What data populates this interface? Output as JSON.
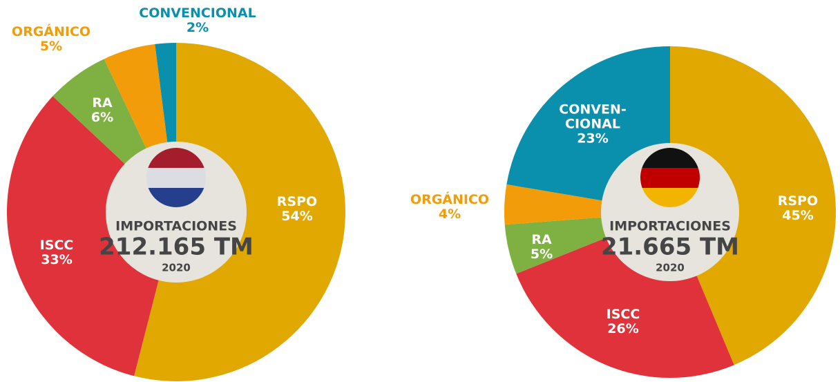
{
  "chart_data": [
    {
      "type": "donut",
      "center_label": "IMPORTACIONES",
      "center_value": "212.165 TM",
      "center_year": "2020",
      "categories": [
        "RSPO",
        "ISCC",
        "RA",
        "ORGÁNICO",
        "CONVENCIONAL"
      ],
      "values": [
        54,
        33,
        6,
        5,
        2
      ],
      "value_labels": [
        "54%",
        "33%",
        "6%",
        "5%",
        "2%"
      ],
      "colors": [
        "#e0a800",
        "#e0323a",
        "#7fb042",
        "#f39c0a",
        "#0a8fac"
      ]
    },
    {
      "type": "donut",
      "center_label": "IMPORTACIONES",
      "center_value": "21.665 TM",
      "center_year": "2020",
      "categories": [
        "RSPO",
        "ISCC",
        "RA",
        "ORGÁNICO",
        "CONVEN-\nCIONAL"
      ],
      "values": [
        45,
        26,
        5,
        4,
        23
      ],
      "value_labels": [
        "45%",
        "26%",
        "5%",
        "4%",
        "23%"
      ],
      "colors": [
        "#e0a800",
        "#e0323a",
        "#7fb042",
        "#f39c0a",
        "#0a8fac"
      ]
    }
  ]
}
